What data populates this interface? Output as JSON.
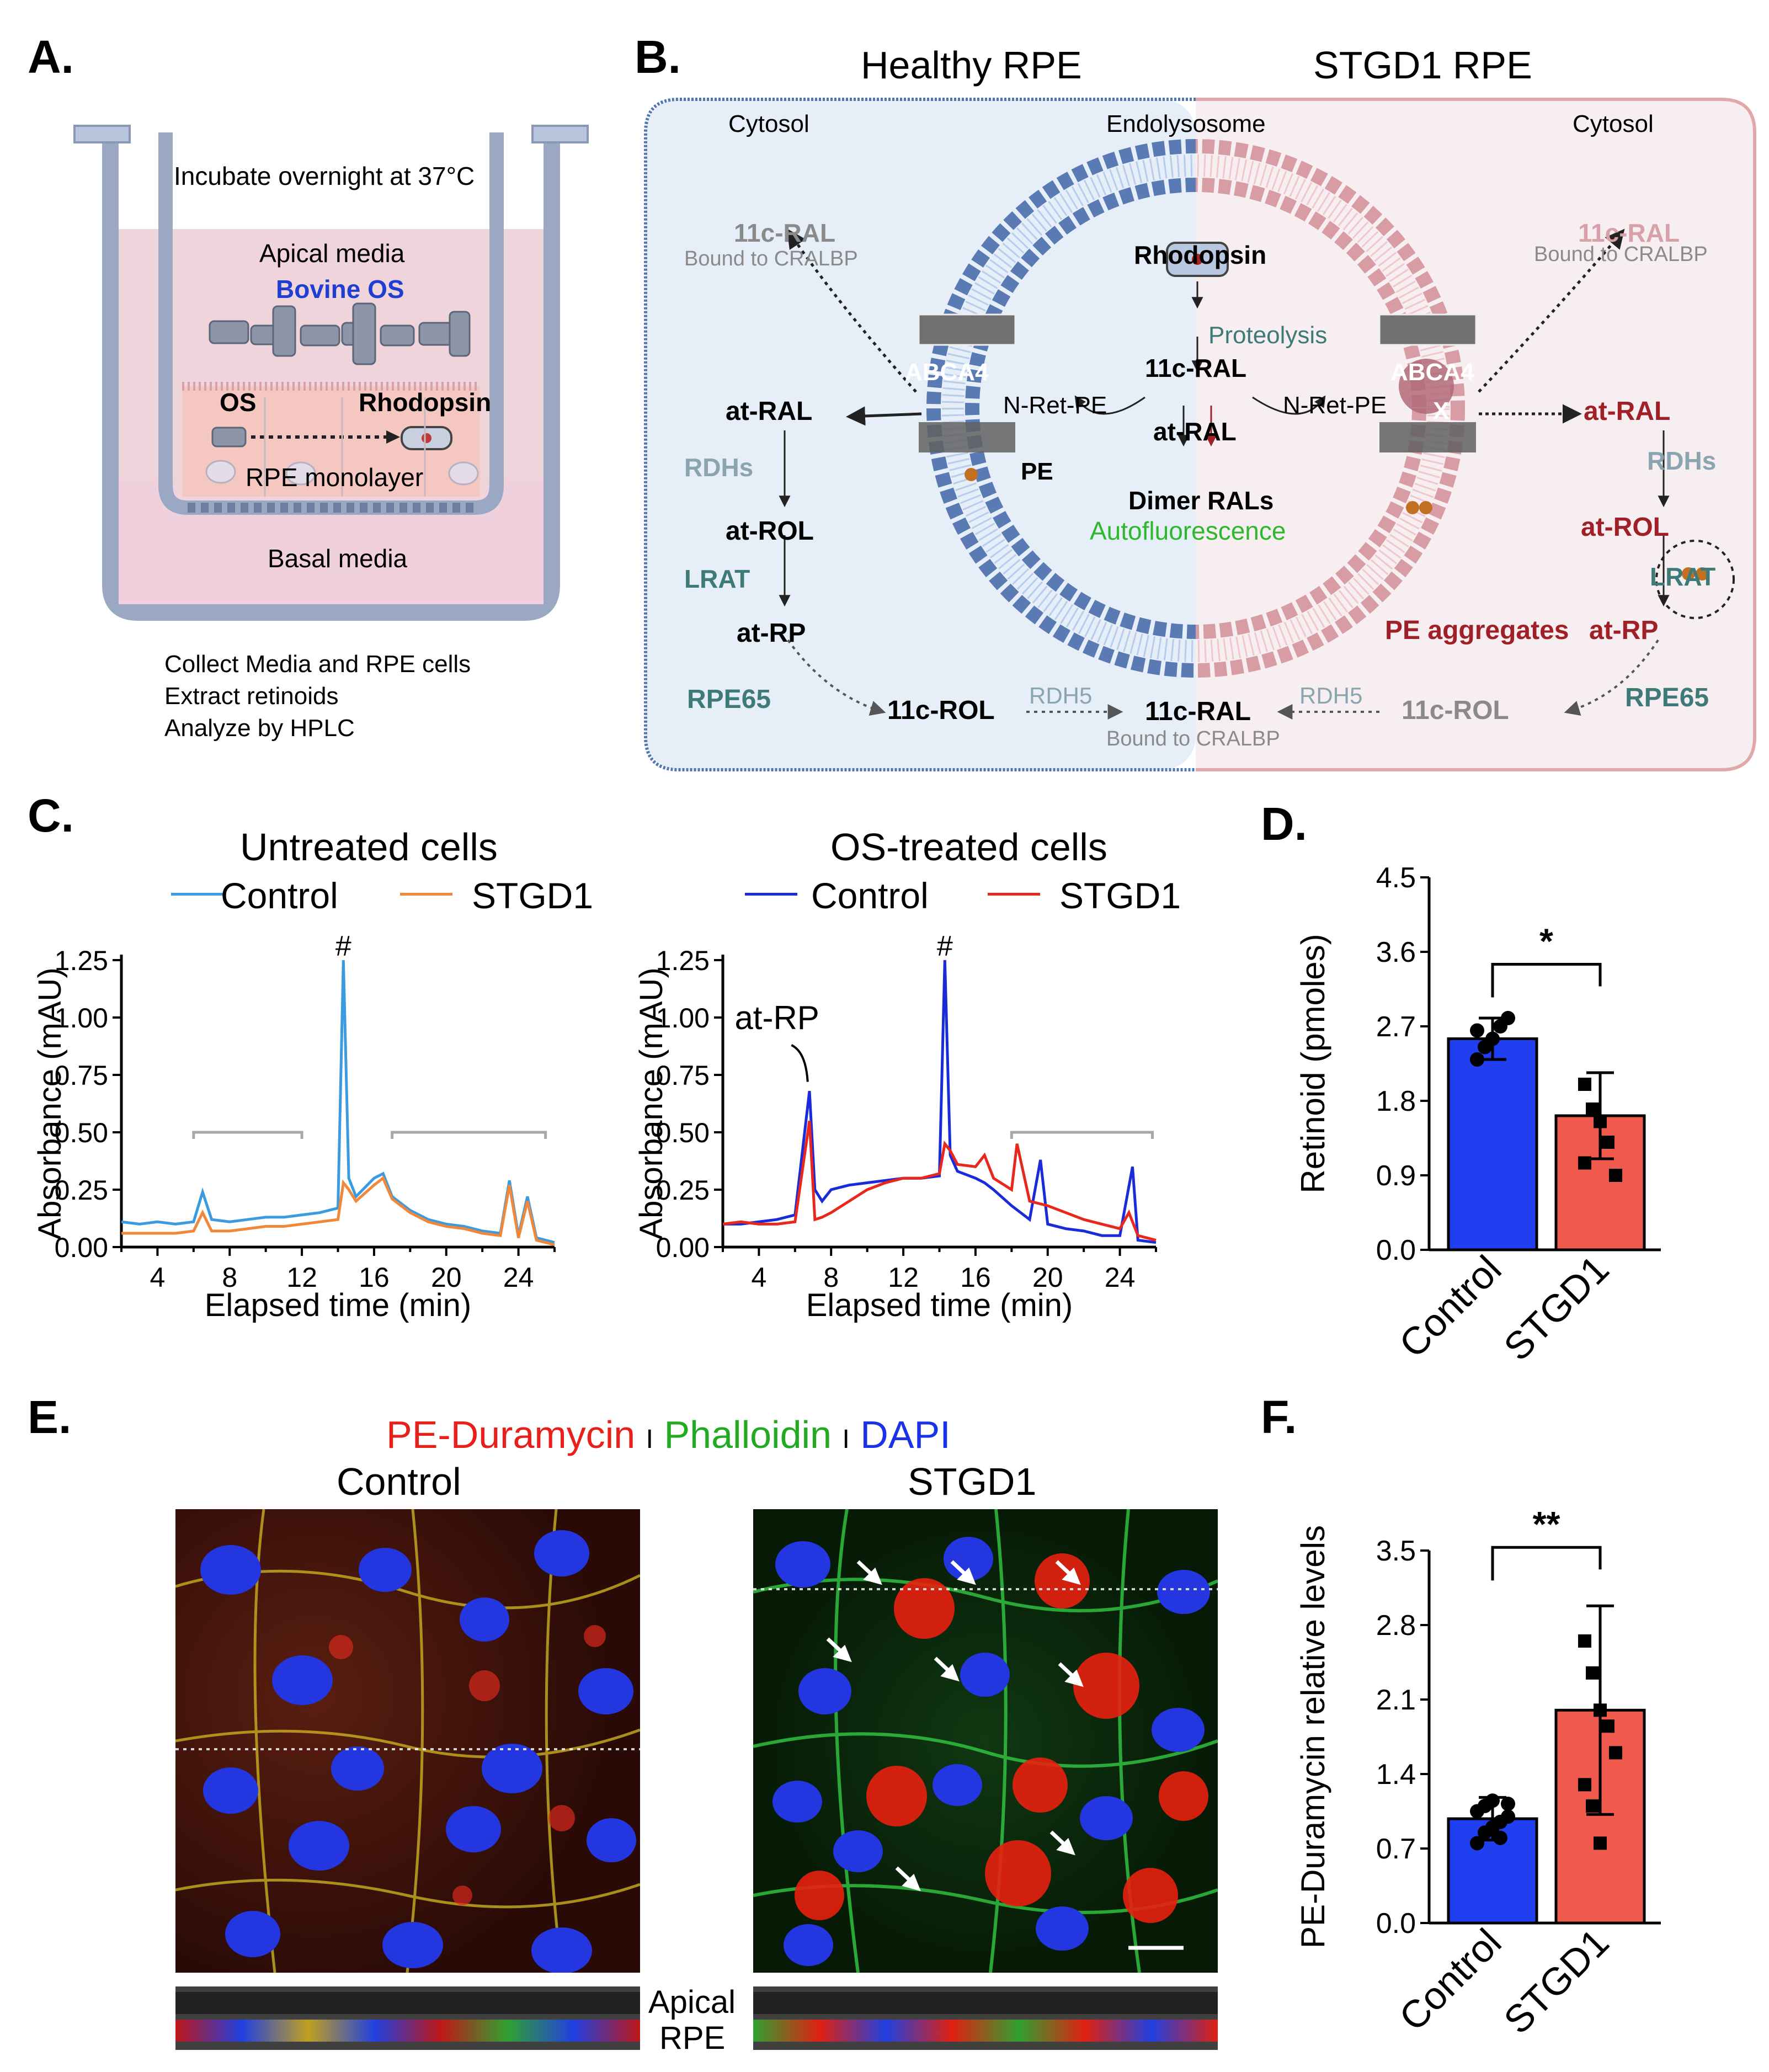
{
  "panels": {
    "A": "A.",
    "B": "B.",
    "C": "C.",
    "D": "D.",
    "E": "E.",
    "F": "F."
  },
  "colors": {
    "blue": "#1f3ff0",
    "red": "#f05a4c",
    "healthy_bg": "#e6eef8",
    "stgd_bg": "#f6eef0",
    "teal": "#3d7a78",
    "dark_red": "#a02028",
    "green": "#2fb82f"
  },
  "panel_a": {
    "incubate": "Incubate overnight at 37°C",
    "apical": "Apical media",
    "bovine_os": "Bovine OS",
    "os": "OS",
    "rhodopsin": "Rhodopsin",
    "rpe_monolayer": "RPE monolayer",
    "basal": "Basal media",
    "steps": [
      "Collect Media and RPE cells",
      "Extract retinoids",
      "Analyze by HPLC"
    ]
  },
  "panel_b": {
    "healthy_title": "Healthy RPE",
    "stgd_title": "STGD1 RPE",
    "cytosol": "Cytosol",
    "endolysosome": "Endolysosome",
    "rhodopsin": "Rhodopsin",
    "proteolysis": "Proteolysis",
    "c11_ral": "11c-RAL",
    "bound": "Bound to CRALBP",
    "at_ral": "at-RAL",
    "abca4": "ABCA4",
    "x_mark": "X",
    "nret": "N-Ret-PE",
    "pe": "PE",
    "dimer": "Dimer RALs",
    "autofluor": "Autofluorescence",
    "rdhs": "RDHs",
    "at_rol": "at-ROL",
    "lrat": "LRAT",
    "at_rp": "at-RP",
    "pe_aggregates": "PE aggregates",
    "rpe65": "RPE65",
    "c11_rol": "11c-ROL",
    "rdh5": "RDH5"
  },
  "panel_c": {
    "left_title": "Untreated cells",
    "right_title": "OS-treated cells",
    "legend_control": "Control",
    "legend_stgd1": "STGD1",
    "hash": "#",
    "at_rp_label": "at-RP"
  },
  "panel_e": {
    "stain_pe": "PE-Duramycin",
    "stain_sep": "I",
    "stain_phalloidin": "Phalloidin",
    "stain_dapi": "DAPI",
    "control": "Control",
    "stgd1": "STGD1",
    "apical": "Apical",
    "rpe": "RPE"
  },
  "chart_data": [
    {
      "id": "C-left",
      "type": "line",
      "title": "Untreated cells",
      "xlabel": "Elapsed time (min)",
      "ylabel": "Absorbance (mAU)",
      "xlim": [
        2,
        26
      ],
      "ylim": [
        0,
        1.25
      ],
      "xticks": [
        4,
        8,
        12,
        16,
        20,
        24
      ],
      "yticks": [
        "0.00",
        "0.25",
        "0.50",
        "0.75",
        "1.00",
        "1.25"
      ],
      "annotation": "#",
      "series": [
        {
          "name": "Control",
          "color": "#3a9be0",
          "x": [
            2,
            3,
            4,
            5,
            6,
            6.5,
            7,
            8,
            9,
            10,
            11,
            12,
            13,
            14,
            14.3,
            14.6,
            15,
            16,
            16.5,
            17,
            18,
            19,
            20,
            21,
            22,
            23,
            23.5,
            24,
            24.5,
            25,
            26
          ],
          "y": [
            0.11,
            0.1,
            0.11,
            0.1,
            0.11,
            0.24,
            0.12,
            0.11,
            0.12,
            0.13,
            0.13,
            0.14,
            0.15,
            0.17,
            1.25,
            0.3,
            0.22,
            0.3,
            0.32,
            0.22,
            0.16,
            0.12,
            0.1,
            0.09,
            0.07,
            0.06,
            0.29,
            0.05,
            0.22,
            0.04,
            0.02
          ]
        },
        {
          "name": "STGD1",
          "color": "#f0883c",
          "x": [
            2,
            3,
            4,
            5,
            6,
            6.5,
            7,
            8,
            9,
            10,
            11,
            12,
            13,
            14,
            14.3,
            14.6,
            15,
            16,
            16.5,
            17,
            18,
            19,
            20,
            21,
            22,
            23,
            23.5,
            24,
            24.5,
            25,
            26
          ],
          "y": [
            0.06,
            0.06,
            0.06,
            0.06,
            0.07,
            0.15,
            0.07,
            0.07,
            0.08,
            0.09,
            0.09,
            0.1,
            0.11,
            0.12,
            0.28,
            0.25,
            0.2,
            0.27,
            0.3,
            0.21,
            0.15,
            0.11,
            0.09,
            0.08,
            0.06,
            0.05,
            0.27,
            0.04,
            0.2,
            0.03,
            0.01
          ]
        }
      ],
      "brackets": [
        [
          6,
          12
        ],
        [
          17,
          25.5
        ]
      ]
    },
    {
      "id": "C-right",
      "type": "line",
      "title": "OS-treated cells",
      "xlabel": "Elapsed time (min)",
      "ylabel": "Absorbance (mAU)",
      "xlim": [
        2,
        26
      ],
      "ylim": [
        0,
        1.25
      ],
      "xticks": [
        4,
        8,
        12,
        16,
        20,
        24
      ],
      "yticks": [
        "0.00",
        "0.25",
        "0.50",
        "0.75",
        "1.00",
        "1.25"
      ],
      "annotation": "#",
      "series": [
        {
          "name": "Control",
          "color": "#1a2bd8",
          "x": [
            2,
            3,
            4,
            5,
            6,
            6.8,
            7.1,
            7.5,
            8,
            9,
            10,
            11,
            12,
            13,
            14,
            14.3,
            14.6,
            15,
            16,
            16.5,
            17,
            18,
            19,
            19.6,
            20,
            21,
            22,
            23,
            24,
            24.7,
            25,
            26
          ],
          "y": [
            0.1,
            0.1,
            0.11,
            0.12,
            0.14,
            0.68,
            0.25,
            0.2,
            0.25,
            0.27,
            0.28,
            0.29,
            0.3,
            0.3,
            0.31,
            1.25,
            0.4,
            0.33,
            0.3,
            0.28,
            0.25,
            0.18,
            0.12,
            0.38,
            0.1,
            0.08,
            0.07,
            0.05,
            0.05,
            0.35,
            0.03,
            0.02
          ]
        },
        {
          "name": "STGD1",
          "color": "#e8281c",
          "x": [
            2,
            3,
            4,
            5,
            6,
            6.8,
            7.1,
            7.5,
            8,
            9,
            10,
            11,
            12,
            13,
            14,
            14.3,
            14.6,
            15,
            16,
            16.5,
            17,
            18,
            18.3,
            19,
            20,
            21,
            22,
            23,
            24,
            24.5,
            25,
            26
          ],
          "y": [
            0.1,
            0.11,
            0.1,
            0.1,
            0.11,
            0.55,
            0.12,
            0.13,
            0.15,
            0.2,
            0.25,
            0.28,
            0.3,
            0.3,
            0.32,
            0.45,
            0.42,
            0.36,
            0.35,
            0.4,
            0.3,
            0.25,
            0.45,
            0.2,
            0.18,
            0.15,
            0.12,
            0.1,
            0.08,
            0.15,
            0.05,
            0.03
          ]
        }
      ],
      "brackets": [
        [
          18,
          25.8
        ]
      ],
      "annotation_label": "at-RP"
    },
    {
      "id": "D",
      "type": "bar",
      "ylabel": "Retinoid (pmoles)",
      "categories": [
        "Control",
        "STGD1"
      ],
      "values": [
        2.55,
        1.62
      ],
      "errors": [
        0.25,
        0.52
      ],
      "ylim": [
        0,
        4.5
      ],
      "yticks": [
        "0.0",
        "0.9",
        "1.8",
        "2.7",
        "3.6",
        "4.5"
      ],
      "significance": "*",
      "colors": [
        "#1f3ff0",
        "#f05a4c"
      ],
      "points": [
        [
          2.3,
          2.45,
          2.55,
          2.7,
          2.8,
          2.65
        ],
        [
          2.0,
          1.7,
          1.55,
          1.3,
          0.9,
          1.05
        ]
      ]
    },
    {
      "id": "F",
      "type": "bar",
      "ylabel": "PE-Duramycin relative levels",
      "categories": [
        "Control",
        "STGD1"
      ],
      "values": [
        0.98,
        2.0
      ],
      "errors": [
        0.2,
        0.98
      ],
      "ylim": [
        0,
        3.5
      ],
      "yticks": [
        "0.0",
        "0.7",
        "1.4",
        "2.1",
        "2.8",
        "3.5"
      ],
      "significance": "**",
      "colors": [
        "#1f3ff0",
        "#f05a4c"
      ],
      "points": [
        [
          0.75,
          0.85,
          0.9,
          0.95,
          1.0,
          1.05,
          1.1,
          1.15,
          0.8,
          1.12
        ],
        [
          2.65,
          2.35,
          2.0,
          1.85,
          1.6,
          1.3,
          1.1,
          0.75
        ]
      ]
    }
  ]
}
